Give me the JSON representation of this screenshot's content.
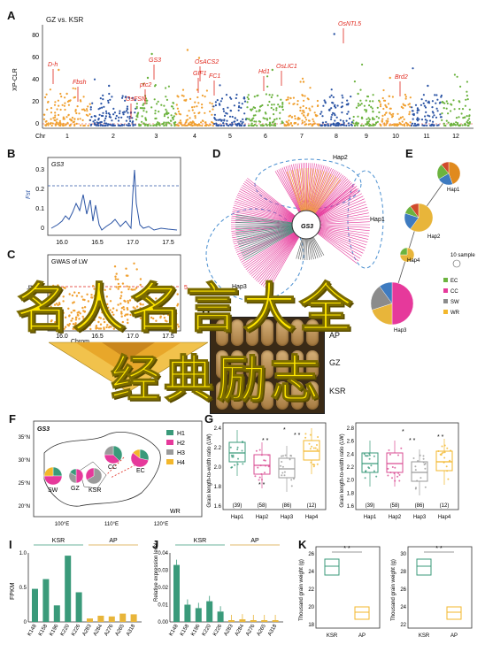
{
  "banner": {
    "line1": "名人名言大全",
    "line2": "经典励志"
  },
  "panels": {
    "A": {
      "letter": "A",
      "subtitle": "GZ vs. KSR",
      "ylabel": "XP-CLR",
      "yticks": [
        "80",
        "60",
        "40",
        "20",
        "0"
      ],
      "chr_label": "Chr",
      "chromosomes": [
        "1",
        "2",
        "3",
        "4",
        "5",
        "6",
        "7",
        "8",
        "9",
        "10",
        "11",
        "12"
      ],
      "genes": [
        "D-h",
        "Fbsh",
        "GS3",
        "ptc2",
        "OsFSN",
        "OsACS2",
        "GIF1",
        "FC1",
        "Hd1",
        "OsLIC1",
        "OsNTL5",
        "Brd2"
      ]
    },
    "B": {
      "letter": "B",
      "title": "GS3",
      "ylabel": "Fst",
      "yticks": [
        "0.3",
        "0.2",
        "0.1",
        "0"
      ],
      "xticks": [
        "16.0",
        "16.5",
        "17.0",
        "17.5"
      ]
    },
    "C": {
      "letter": "C",
      "title": "GWAS of LW",
      "ylabel": "-lg",
      "xticks": [
        "16.0",
        "16.5",
        "17.0",
        "17.5"
      ],
      "xlabel": "Chrom",
      "threshold": "5."
    },
    "D": {
      "letter": "D",
      "center": "GS3",
      "labels": [
        "Hap2",
        "Hap1",
        "Hap3"
      ]
    },
    "E": {
      "letter": "E",
      "labels": [
        "Hap1",
        "Hap2",
        "Hap4",
        "Hap3"
      ],
      "sample_note": "10 sample",
      "legend": [
        "EC",
        "CC",
        "SW",
        "WR"
      ]
    },
    "H": {
      "letter": "H",
      "rows": [
        "AP",
        "GZ",
        "KSR"
      ]
    },
    "F": {
      "letter": "F",
      "title": "GS3",
      "regions": [
        "SW",
        "GZ",
        "KSR",
        "CC",
        "EC",
        "WR"
      ],
      "legend": [
        "H1",
        "H2",
        "H3",
        "H4"
      ],
      "lat": [
        "35°N",
        "30°N",
        "25°N",
        "20°N"
      ],
      "lon": [
        "100°E",
        "110°E",
        "120°E"
      ]
    },
    "G": {
      "letter": "G",
      "left": {
        "ylabel": "Grain length-to-width ratio (LW)",
        "yticks": [
          "2.4",
          "2.2",
          "2.0",
          "1.8",
          "1.6"
        ],
        "counts": [
          "(39)",
          "(58)",
          "(86)",
          "(12)"
        ]
      },
      "right": {
        "ylabel": "Grain length-to-width ratio (LW)",
        "yticks": [
          "2.8",
          "2.6",
          "2.4",
          "2.2",
          "2.0",
          "1.8",
          "1.6"
        ],
        "counts": [
          "(39)",
          "(58)",
          "(86)",
          "(12)"
        ]
      },
      "haps": [
        "Hap1",
        "Hap2",
        "Hap3",
        "Hap4"
      ],
      "sig": [
        "*",
        "* *",
        "* *",
        "* *",
        "*",
        "* *",
        "* *"
      ]
    },
    "I": {
      "letter": "I",
      "ylabel": "FPKM",
      "groups": [
        "KSR",
        "AP"
      ],
      "yticks": [
        "1.0",
        "0.5",
        "0"
      ],
      "samples": [
        "K148",
        "K158",
        "K196",
        "K220",
        "K226",
        "A283",
        "A284",
        "A276",
        "A265",
        "A318"
      ],
      "values": [
        0.48,
        0.62,
        0.24,
        0.96,
        0.43,
        0.05,
        0.09,
        0.08,
        0.12,
        0.11
      ]
    },
    "J": {
      "letter": "J",
      "ylabel": "Relative expression level",
      "groups": [
        "KSR",
        "AP"
      ],
      "yticks": [
        "0.04",
        "0.03",
        "0.02",
        "0.01",
        "0.00"
      ],
      "samples": [
        "K148",
        "K158",
        "K196",
        "K220",
        "K226",
        "A283",
        "A284",
        "A276",
        "A265",
        "A318"
      ],
      "values": [
        0.033,
        0.01,
        0.008,
        0.012,
        0.006,
        0.001,
        0.0015,
        0.001,
        0.001,
        0.001
      ]
    },
    "K": {
      "letter": "K",
      "left": {
        "ylabel": "Thousand grain weight (g)",
        "yticks": [
          "26",
          "24",
          "22",
          "20",
          "18"
        ],
        "sig": "* *",
        "groups": [
          "KSR",
          "AP"
        ]
      },
      "right": {
        "ylabel": "Thousand grain weight (g)",
        "yticks": [
          "30",
          "28",
          "26",
          "24",
          "22"
        ],
        "sig": "* *",
        "groups": [
          "KSR",
          "AP"
        ]
      }
    }
  },
  "colors": {
    "orange": "#f0a030",
    "blue": "#2c55a5",
    "green": "#6cb33f",
    "red": "#e0261b",
    "pink": "#e6399b",
    "teal": "#3a9a7a",
    "gold": "#f3b72b"
  }
}
